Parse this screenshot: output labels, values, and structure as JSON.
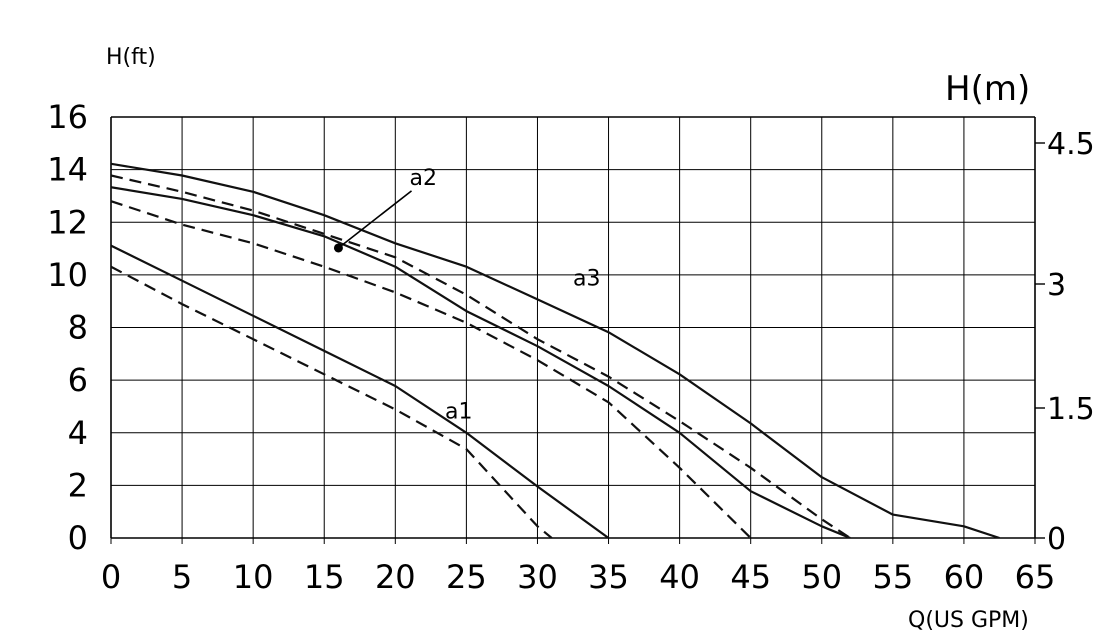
{
  "chart_data": {
    "type": "line",
    "xlabel": "Q(US GPM)",
    "ylabel_left": "H(ft)",
    "ylabel_right": "H(m)",
    "xlim": [
      0,
      65
    ],
    "x_ticks": [
      "0",
      "5",
      "10",
      "15",
      "20",
      "25",
      "30",
      "35",
      "40",
      "45",
      "50",
      "55",
      "60",
      "65"
    ],
    "y_ticks_left": [
      "16",
      "14",
      "12",
      "10",
      "8",
      "6",
      "4",
      "2",
      "0"
    ],
    "y_ticks_right": [
      "4.5",
      "3",
      "1.5",
      "0"
    ],
    "grid": true,
    "series": [
      {
        "style": "solid",
        "points": [
          [
            0,
            10.5
          ],
          [
            5,
            9
          ],
          [
            10,
            7.5
          ],
          [
            15,
            6
          ],
          [
            20,
            4.5
          ],
          [
            25,
            2.5
          ],
          [
            30,
            0.2
          ],
          [
            35,
            -2
          ]
        ]
      },
      {
        "style": "dashed",
        "points": [
          [
            0,
            9.6
          ],
          [
            5,
            8
          ],
          [
            10,
            6.5
          ],
          [
            15,
            5
          ],
          [
            20,
            3.5
          ],
          [
            25,
            1.8
          ],
          [
            30,
            -1.5
          ],
          [
            31,
            -2
          ]
        ]
      },
      {
        "style": "solid",
        "points": [
          [
            0,
            13
          ],
          [
            5,
            12.5
          ],
          [
            10,
            11.8
          ],
          [
            15,
            10.9
          ],
          [
            20,
            9.6
          ],
          [
            25,
            7.7
          ],
          [
            30,
            6.2
          ],
          [
            35,
            4.5
          ],
          [
            40,
            2.5
          ],
          [
            45,
            0
          ],
          [
            50,
            -1.5
          ],
          [
            52,
            -2
          ]
        ]
      },
      {
        "style": "dashed",
        "points": [
          [
            0,
            12.4
          ],
          [
            5,
            11.4
          ],
          [
            10,
            10.6
          ],
          [
            15,
            9.6
          ],
          [
            20,
            8.5
          ],
          [
            25,
            7.2
          ],
          [
            30,
            5.6
          ],
          [
            35,
            3.8
          ],
          [
            40,
            1.0
          ],
          [
            45,
            -2
          ]
        ]
      },
      {
        "style": "dashed",
        "points": [
          [
            0,
            13.5
          ],
          [
            5,
            12.8
          ],
          [
            10,
            12
          ],
          [
            15,
            11
          ],
          [
            20,
            10
          ],
          [
            25,
            8.4
          ],
          [
            30,
            6.5
          ],
          [
            35,
            4.9
          ],
          [
            40,
            3
          ],
          [
            45,
            1
          ],
          [
            50,
            -1.2
          ],
          [
            52,
            -2
          ]
        ]
      },
      {
        "style": "solid",
        "points": [
          [
            0,
            14
          ],
          [
            5,
            13.5
          ],
          [
            10,
            12.8
          ],
          [
            15,
            11.8
          ],
          [
            20,
            10.6
          ],
          [
            25,
            9.6
          ],
          [
            30,
            8.2
          ],
          [
            35,
            6.8
          ],
          [
            40,
            5
          ],
          [
            45,
            2.9
          ],
          [
            50,
            0.6
          ],
          [
            55,
            -1
          ],
          [
            60,
            -1.5
          ],
          [
            62.5,
            -2
          ]
        ]
      }
    ],
    "annotations": [
      {
        "text": "a1",
        "x": 23.5,
        "y": 3.1
      },
      {
        "text": "a2",
        "x": 21,
        "y": 13.1,
        "point": [
          16,
          10.4
        ]
      },
      {
        "text": "a3",
        "x": 32.5,
        "y": 8.8
      }
    ]
  }
}
